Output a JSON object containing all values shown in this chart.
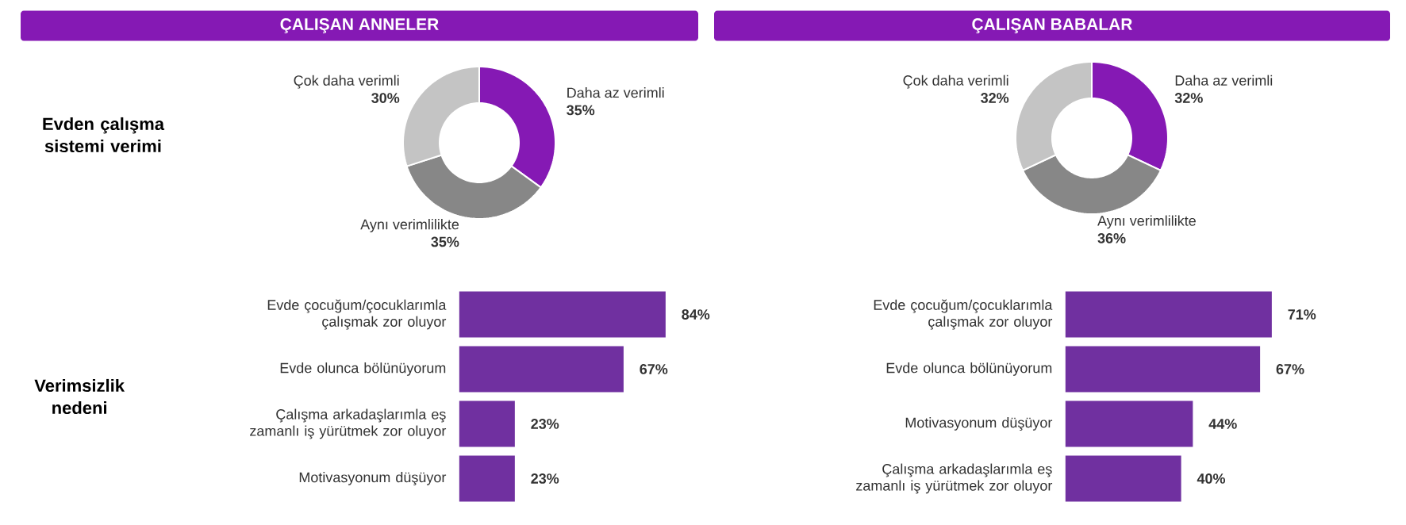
{
  "chart_data": [
    {
      "type": "donut",
      "title": "ÇALIŞAN ANNELER",
      "annotations": [
        "Evden çalışma sistemi verimi"
      ],
      "categories": [
        "Daha az verimli",
        "Aynı verimlilikte",
        "Çok daha verimli"
      ],
      "values": [
        35,
        35,
        30
      ],
      "colors": [
        "#8519b4",
        "#878787",
        "#c4c4c4"
      ],
      "value_labels": [
        "35%",
        "35%",
        "30%"
      ]
    },
    {
      "type": "donut",
      "title": "ÇALIŞAN BABALAR",
      "categories": [
        "Daha az verimli",
        "Aynı verimlilikte",
        "Çok daha verimli"
      ],
      "values": [
        32,
        36,
        32
      ],
      "colors": [
        "#8519b4",
        "#878787",
        "#c4c4c4"
      ],
      "value_labels": [
        "32%",
        "36%",
        "32%"
      ]
    },
    {
      "type": "bar",
      "orientation": "horizontal",
      "ylabel": "Verimsizlik nedeni",
      "categories": [
        "Evde çocuğum/çocuklarımla çalışmak zor oluyor",
        "Evde olunca bölünüyorum",
        "Çalışma arkadaşlarımla eş zamanlı iş yürütmek zor oluyor",
        "Motivasyonum düşüyor"
      ],
      "values": [
        84,
        67,
        23,
        23
      ],
      "color": "#7030a0",
      "value_labels": [
        "84%",
        "67%",
        "23%",
        "23%"
      ]
    },
    {
      "type": "bar",
      "orientation": "horizontal",
      "categories": [
        "Evde çocuğum/çocuklarımla çalışmak zor oluyor",
        "Evde olunca bölünüyorum",
        "Motivasyonum düşüyor",
        "Çalışma arkadaşlarımla eş zamanlı iş yürütmek zor oluyor"
      ],
      "values": [
        71,
        67,
        44,
        40
      ],
      "color": "#7030a0",
      "value_labels": [
        "71%",
        "67%",
        "44%",
        "40%"
      ]
    }
  ]
}
